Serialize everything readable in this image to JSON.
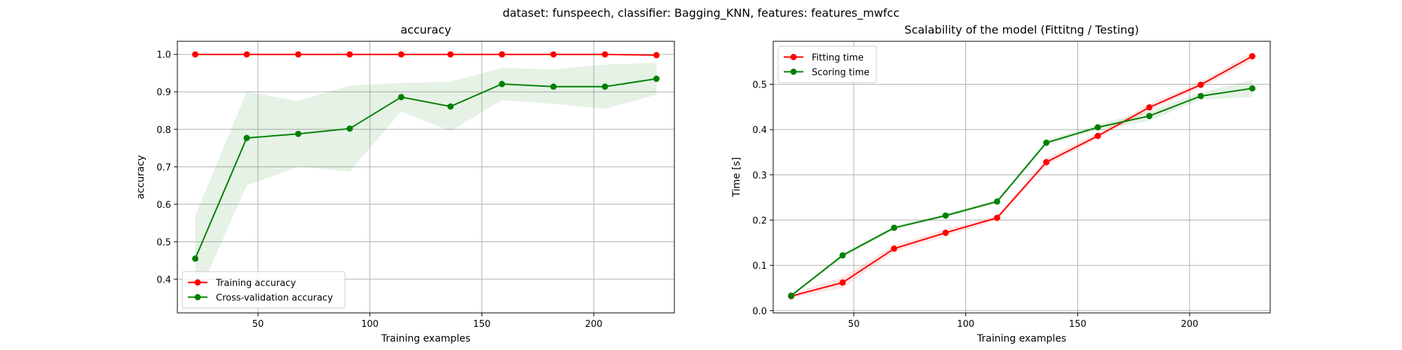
{
  "figure": {
    "suptitle": "dataset: funspeech, classifier: Bagging_KNN, features: features_mwfcc"
  },
  "colors": {
    "training": "#ff0000",
    "cv": "#008000"
  },
  "chart_data": [
    {
      "type": "line",
      "title": "accuracy",
      "xlabel": "Training examples",
      "ylabel": "accuracy",
      "xlim": [
        14,
        236
      ],
      "ylim": [
        0.31,
        1.035
      ],
      "xticks": [
        50,
        100,
        150,
        200
      ],
      "yticks": [
        0.4,
        0.5,
        0.6,
        0.7,
        0.8,
        0.9,
        1.0
      ],
      "ytick_labels": [
        "0.4",
        "0.5",
        "0.6",
        "0.7",
        "0.8",
        "0.9",
        "1.0"
      ],
      "grid": true,
      "legend_position": "lower left",
      "x": [
        22,
        45,
        68,
        91,
        114,
        136,
        159,
        182,
        205,
        228
      ],
      "series": [
        {
          "name": "Training accuracy",
          "color": "#ff0000",
          "values": [
            1.0,
            1.0,
            1.0,
            1.0,
            1.0,
            1.0,
            1.0,
            1.0,
            1.0,
            0.998
          ],
          "band_low": [
            1.0,
            1.0,
            1.0,
            1.0,
            1.0,
            1.0,
            1.0,
            1.0,
            1.0,
            0.995
          ],
          "band_high": [
            1.0,
            1.0,
            1.0,
            1.0,
            1.0,
            1.0,
            1.0,
            1.0,
            1.0,
            1.0
          ]
        },
        {
          "name": "Cross-validation accuracy",
          "color": "#008000",
          "values": [
            0.455,
            0.777,
            0.788,
            0.802,
            0.886,
            0.861,
            0.921,
            0.914,
            0.914,
            0.935
          ],
          "band_low": [
            0.34,
            0.65,
            0.7,
            0.687,
            0.848,
            0.795,
            0.878,
            0.868,
            0.855,
            0.892
          ],
          "band_high": [
            0.57,
            0.9,
            0.876,
            0.917,
            0.924,
            0.927,
            0.964,
            0.96,
            0.973,
            0.978
          ]
        }
      ]
    },
    {
      "type": "line",
      "title": "Scalability of the model (Fittitng / Testing)",
      "xlabel": "Training examples",
      "ylabel": "Time [s]",
      "xlim": [
        14,
        236
      ],
      "ylim": [
        -0.005,
        0.595
      ],
      "xticks": [
        50,
        100,
        150,
        200
      ],
      "yticks": [
        0.0,
        0.1,
        0.2,
        0.3,
        0.4,
        0.5
      ],
      "ytick_labels": [
        "0.0",
        "0.1",
        "0.2",
        "0.3",
        "0.4",
        "0.5"
      ],
      "grid": true,
      "legend_position": "upper left",
      "x": [
        22,
        45,
        68,
        91,
        114,
        136,
        159,
        182,
        205,
        228
      ],
      "series": [
        {
          "name": "Fitting time",
          "color": "#ff0000",
          "values": [
            0.032,
            0.062,
            0.137,
            0.172,
            0.205,
            0.328,
            0.386,
            0.449,
            0.499,
            0.562
          ],
          "band_low": [
            0.027,
            0.05,
            0.13,
            0.164,
            0.2,
            0.32,
            0.38,
            0.442,
            0.492,
            0.553
          ],
          "band_high": [
            0.037,
            0.074,
            0.144,
            0.18,
            0.21,
            0.336,
            0.392,
            0.456,
            0.506,
            0.571
          ]
        },
        {
          "name": "Scoring time",
          "color": "#008000",
          "values": [
            0.033,
            0.122,
            0.183,
            0.21,
            0.241,
            0.371,
            0.405,
            0.43,
            0.474,
            0.491
          ],
          "band_low": [
            0.03,
            0.117,
            0.178,
            0.206,
            0.237,
            0.365,
            0.399,
            0.419,
            0.466,
            0.472
          ],
          "band_high": [
            0.036,
            0.127,
            0.188,
            0.214,
            0.245,
            0.377,
            0.411,
            0.441,
            0.482,
            0.51
          ]
        }
      ]
    }
  ]
}
